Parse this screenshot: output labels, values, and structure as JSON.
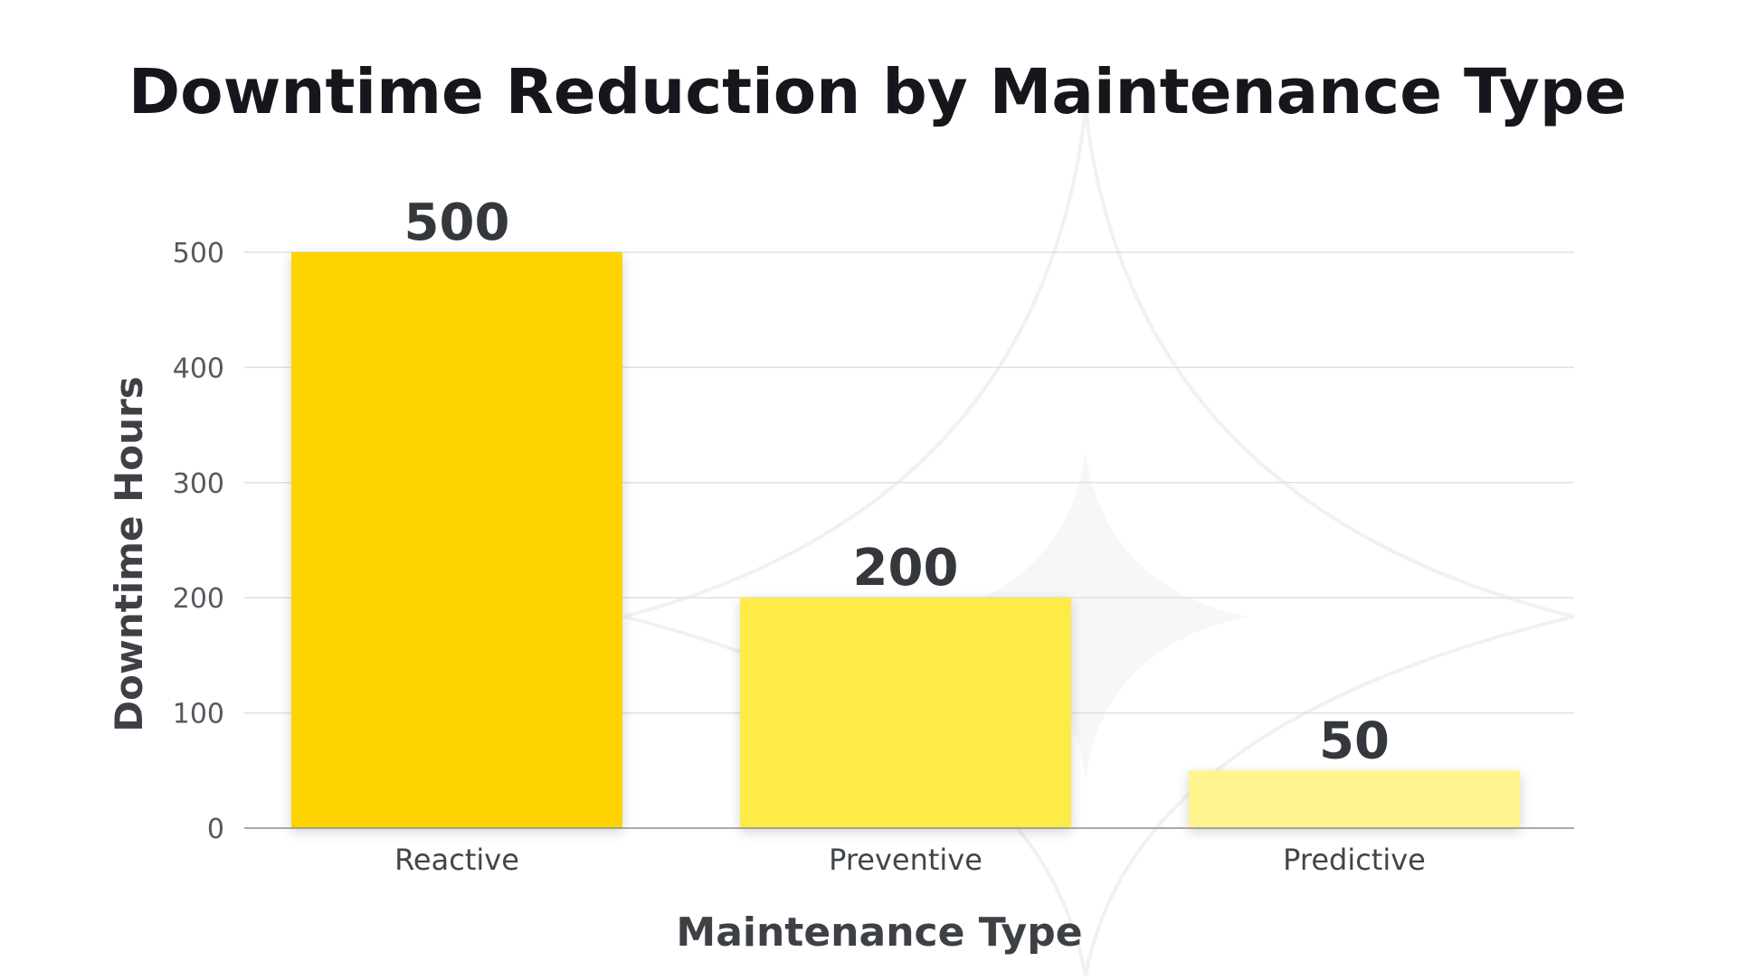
{
  "chart_data": {
    "type": "bar",
    "title": "Downtime Reduction by Maintenance Type",
    "xlabel": "Maintenance Type",
    "ylabel": "Downtime Hours",
    "categories": [
      "Reactive",
      "Preventive",
      "Predictive"
    ],
    "values": [
      500,
      200,
      50
    ],
    "data_labels": [
      "500",
      "200",
      "50"
    ],
    "yticks": [
      0,
      100,
      200,
      300,
      400,
      500
    ],
    "ylim": [
      0,
      540
    ],
    "grid": true,
    "legend": "none",
    "colors": [
      "#FFD300",
      "#FFEB47",
      "#FFF48E"
    ]
  }
}
